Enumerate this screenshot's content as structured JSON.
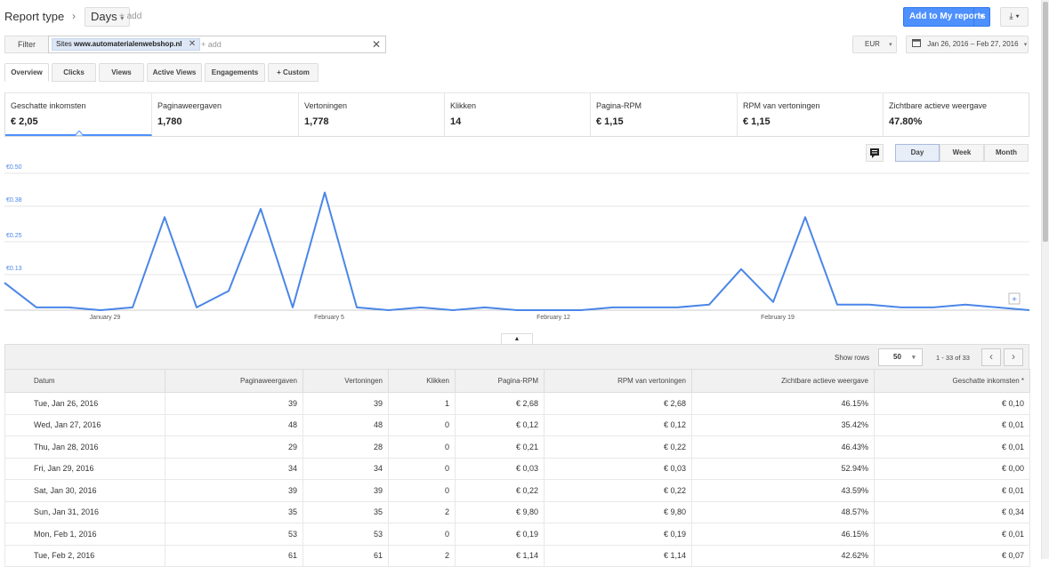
{
  "header": {
    "report_type_label": "Report type",
    "breadcrumb_sep": "›",
    "days_label": "Days",
    "add_label": "+ add",
    "add_to_reports_label": "Add to My reports",
    "download_icon": "download-icon"
  },
  "filter": {
    "label": "Filter",
    "chip_prefix": "Sites",
    "chip_value": "www.automaterialenwebshop.nl",
    "add_label": "+ add",
    "clear_glyph": "✕",
    "currency": "EUR",
    "date_range": "Jan 26, 2016 – Feb 27, 2016"
  },
  "tabs": [
    {
      "label": "Overview"
    },
    {
      "label": "Clicks"
    },
    {
      "label": "Views"
    },
    {
      "label": "Active Views"
    },
    {
      "label": "Engagements"
    },
    {
      "label": "+ Custom"
    }
  ],
  "metrics": [
    {
      "label": "Geschatte inkomsten",
      "value": "€ 2,05"
    },
    {
      "label": "Paginaweergaven",
      "value": "1,780"
    },
    {
      "label": "Vertoningen",
      "value": "1,778"
    },
    {
      "label": "Klikken",
      "value": "14"
    },
    {
      "label": "Pagina-RPM",
      "value": "€ 1,15"
    },
    {
      "label": "RPM van vertoningen",
      "value": "€ 1,15"
    },
    {
      "label": "Zichtbare actieve weergave",
      "value": "47.80%"
    }
  ],
  "range_buttons": [
    {
      "label": "Day"
    },
    {
      "label": "Week"
    },
    {
      "label": "Month"
    }
  ],
  "chart_data": {
    "type": "line",
    "y_ticks": [
      "€0.50",
      "€0.38",
      "€0.25",
      "€0.13"
    ],
    "y_tick_values": [
      0.5,
      0.38,
      0.25,
      0.13
    ],
    "x_tick_labels": [
      "January 29",
      "February 5",
      "February 12",
      "February 19"
    ],
    "x_tick_indices": [
      3,
      10,
      17,
      24
    ],
    "ylim": [
      0,
      0.5
    ],
    "grid": true,
    "series": [
      {
        "color": "#4a86e8",
        "values": [
          0.1,
          0.01,
          0.01,
          0.0,
          0.01,
          0.34,
          0.01,
          0.07,
          0.37,
          0.01,
          0.43,
          0.01,
          0.0,
          0.01,
          0.0,
          0.01,
          0.0,
          0.0,
          0.0,
          0.01,
          0.01,
          0.01,
          0.02,
          0.15,
          0.03,
          0.34,
          0.02,
          0.02,
          0.01,
          0.01,
          0.02,
          0.01,
          0.0
        ]
      }
    ]
  },
  "table": {
    "show_rows_label": "Show rows",
    "rows_value": "50",
    "pager_text": "1 - 33 of 33",
    "columns": [
      "Datum",
      "Paginaweergaven",
      "Vertoningen",
      "Klikken",
      "Pagina-RPM",
      "RPM van vertoningen",
      "Zichtbare actieve weergave",
      "Geschatte inkomsten *"
    ],
    "rows": [
      [
        "Tue, Jan 26, 2016",
        "39",
        "39",
        "1",
        "€ 2,68",
        "€ 2,68",
        "46.15%",
        "€ 0,10"
      ],
      [
        "Wed, Jan 27, 2016",
        "48",
        "48",
        "0",
        "€ 0,12",
        "€ 0,12",
        "35.42%",
        "€ 0,01"
      ],
      [
        "Thu, Jan 28, 2016",
        "29",
        "28",
        "0",
        "€ 0,21",
        "€ 0,22",
        "46.43%",
        "€ 0,01"
      ],
      [
        "Fri, Jan 29, 2016",
        "34",
        "34",
        "0",
        "€ 0,03",
        "€ 0,03",
        "52.94%",
        "€ 0,00"
      ],
      [
        "Sat, Jan 30, 2016",
        "39",
        "39",
        "0",
        "€ 0,22",
        "€ 0,22",
        "43.59%",
        "€ 0,01"
      ],
      [
        "Sun, Jan 31, 2016",
        "35",
        "35",
        "2",
        "€ 9,80",
        "€ 9,80",
        "48.57%",
        "€ 0,34"
      ],
      [
        "Mon, Feb 1, 2016",
        "53",
        "53",
        "0",
        "€ 0,19",
        "€ 0,19",
        "46.15%",
        "€ 0,01"
      ],
      [
        "Tue, Feb 2, 2016",
        "61",
        "61",
        "2",
        "€ 1,14",
        "€ 1,14",
        "42.62%",
        "€ 0,07"
      ]
    ]
  }
}
